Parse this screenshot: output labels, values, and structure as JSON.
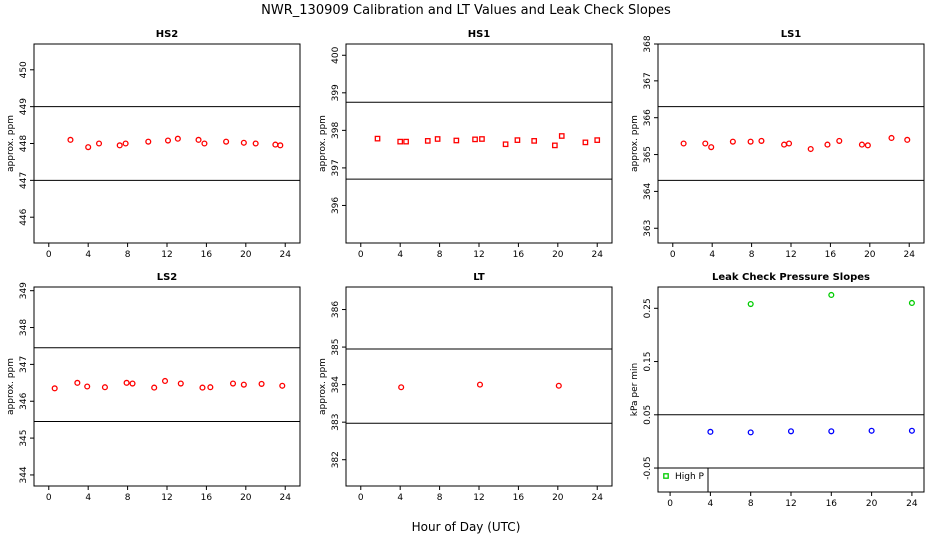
{
  "figure": {
    "title": "NWR_130909  Calibration and LT Values and Leak Check Slopes",
    "xlabel": "Hour of Day (UTC)"
  },
  "chart_data": [
    {
      "id": "hs2",
      "type": "scatter",
      "title": "HS2",
      "ylabel": "approx. ppm",
      "xlim": [
        -1.5,
        25.5
      ],
      "ylim": [
        445.3,
        450.7
      ],
      "xticks": [
        "0",
        "4",
        "8",
        "12",
        "16",
        "20",
        "24"
      ],
      "xtick_values": [
        0,
        4,
        8,
        12,
        16,
        20,
        24
      ],
      "yticks": [
        "446",
        "447",
        "448",
        "449",
        "450"
      ],
      "ytick_values": [
        446,
        447,
        448,
        449,
        450
      ],
      "hlines": [
        449.0,
        447.0
      ],
      "color": "#ff0000",
      "marker": "circle",
      "series": [
        {
          "x": [
            2.2,
            4.0,
            5.1,
            7.2,
            7.8,
            10.1,
            12.1,
            13.1,
            15.2,
            15.8,
            18.0,
            19.8,
            21.0,
            23.0,
            23.5
          ],
          "y": [
            448.1,
            447.9,
            448.0,
            447.95,
            448.0,
            448.05,
            448.08,
            448.13,
            448.1,
            448.0,
            448.05,
            448.02,
            448.0,
            447.97,
            447.95
          ]
        }
      ]
    },
    {
      "id": "hs1",
      "type": "scatter",
      "title": "HS1",
      "ylabel": "approx. ppm",
      "xlim": [
        -1.5,
        25.5
      ],
      "ylim": [
        395.0,
        400.3
      ],
      "xticks": [
        "0",
        "4",
        "8",
        "12",
        "16",
        "20",
        "24"
      ],
      "xtick_values": [
        0,
        4,
        8,
        12,
        16,
        20,
        24
      ],
      "yticks": [
        "396",
        "397",
        "398",
        "399",
        "400"
      ],
      "ytick_values": [
        396,
        397,
        398,
        399,
        400
      ],
      "hlines": [
        398.75,
        396.7
      ],
      "color": "#ff0000",
      "marker": "square",
      "series": [
        {
          "x": [
            1.7,
            4.0,
            4.6,
            6.8,
            7.8,
            9.7,
            11.6,
            12.3,
            14.7,
            15.9,
            17.6,
            19.7,
            20.4,
            22.8,
            24.0
          ],
          "y": [
            397.78,
            397.7,
            397.7,
            397.72,
            397.77,
            397.73,
            397.76,
            397.77,
            397.63,
            397.74,
            397.72,
            397.6,
            397.85,
            397.68,
            397.74
          ]
        }
      ]
    },
    {
      "id": "ls1",
      "type": "scatter",
      "title": "LS1",
      "ylabel": "approx. ppm",
      "xlim": [
        -1.5,
        25.5
      ],
      "ylim": [
        362.6,
        368.0
      ],
      "xticks": [
        "0",
        "4",
        "8",
        "12",
        "16",
        "20",
        "24"
      ],
      "xtick_values": [
        0,
        4,
        8,
        12,
        16,
        20,
        24
      ],
      "yticks": [
        "363",
        "364",
        "365",
        "366",
        "367",
        "368"
      ],
      "ytick_values": [
        363,
        364,
        365,
        366,
        367,
        368
      ],
      "hlines": [
        366.3,
        364.3
      ],
      "color": "#ff0000",
      "marker": "circle",
      "series": [
        {
          "x": [
            1.1,
            3.3,
            3.9,
            6.1,
            7.9,
            9.0,
            11.3,
            11.8,
            14.0,
            15.7,
            16.9,
            19.2,
            19.8,
            22.2,
            23.8
          ],
          "y": [
            365.3,
            365.3,
            365.2,
            365.35,
            365.35,
            365.37,
            365.27,
            365.3,
            365.15,
            365.27,
            365.37,
            365.27,
            365.25,
            365.45,
            365.4
          ]
        }
      ]
    },
    {
      "id": "ls2",
      "type": "scatter",
      "title": "LS2",
      "ylabel": "approx. ppm",
      "xlim": [
        -1.5,
        25.5
      ],
      "ylim": [
        343.7,
        349.1
      ],
      "xticks": [
        "0",
        "4",
        "8",
        "12",
        "16",
        "20",
        "24"
      ],
      "xtick_values": [
        0,
        4,
        8,
        12,
        16,
        20,
        24
      ],
      "yticks": [
        "344",
        "345",
        "346",
        "347",
        "348",
        "349"
      ],
      "ytick_values": [
        344,
        345,
        346,
        347,
        348,
        349
      ],
      "hlines": [
        347.45,
        345.45
      ],
      "color": "#ff0000",
      "marker": "circle",
      "series": [
        {
          "x": [
            0.6,
            2.9,
            3.9,
            5.7,
            7.9,
            8.5,
            10.7,
            11.8,
            13.4,
            15.6,
            16.4,
            18.7,
            19.8,
            21.6,
            23.7
          ],
          "y": [
            346.35,
            346.5,
            346.4,
            346.38,
            346.5,
            346.48,
            346.37,
            346.55,
            346.48,
            346.37,
            346.38,
            346.48,
            346.45,
            346.47,
            346.42
          ]
        }
      ]
    },
    {
      "id": "lt",
      "type": "scatter",
      "title": "LT",
      "ylabel": "approx. ppm",
      "xlim": [
        -1.5,
        25.5
      ],
      "ylim": [
        381.3,
        386.6
      ],
      "xticks": [
        "0",
        "4",
        "8",
        "12",
        "16",
        "20",
        "24"
      ],
      "xtick_values": [
        0,
        4,
        8,
        12,
        16,
        20,
        24
      ],
      "yticks": [
        "382",
        "383",
        "384",
        "385",
        "386"
      ],
      "ytick_values": [
        382,
        383,
        384,
        385,
        386
      ],
      "hlines": [
        384.95,
        382.97
      ],
      "color": "#ff0000",
      "marker": "circle",
      "series": [
        {
          "x": [
            4.1,
            12.1,
            20.1
          ],
          "y": [
            383.93,
            384.0,
            383.97
          ]
        }
      ]
    },
    {
      "id": "leak",
      "type": "scatter",
      "title": "Leak Check Pressure Slopes",
      "ylabel": "kPa per min",
      "xlim": [
        -1.2,
        25.2
      ],
      "ylim": [
        -0.095,
        0.29
      ],
      "xticks": [
        "0",
        "4",
        "8",
        "12",
        "16",
        "20",
        "24"
      ],
      "xtick_values": [
        0,
        4,
        8,
        12,
        16,
        20,
        24
      ],
      "yticks": [
        "-0.05",
        "0.05",
        "0.15",
        "0.25"
      ],
      "ytick_values": [
        -0.05,
        0.05,
        0.15,
        0.25
      ],
      "hlines": [
        0.05,
        -0.05
      ],
      "legend": {
        "position": "bottom-left",
        "entries": [
          "High P"
        ]
      },
      "series": [
        {
          "name": "High P",
          "color": "#00cc00",
          "marker": "circle",
          "x": [
            8.0,
            16.0,
            24.0
          ],
          "y": [
            0.258,
            0.275,
            0.26
          ]
        },
        {
          "color": "#0000ff",
          "marker": "circle",
          "x": [
            4.0,
            8.0,
            12.0,
            16.0,
            20.0,
            24.0
          ],
          "y": [
            0.018,
            0.017,
            0.019,
            0.019,
            0.02,
            0.02
          ]
        }
      ]
    }
  ]
}
